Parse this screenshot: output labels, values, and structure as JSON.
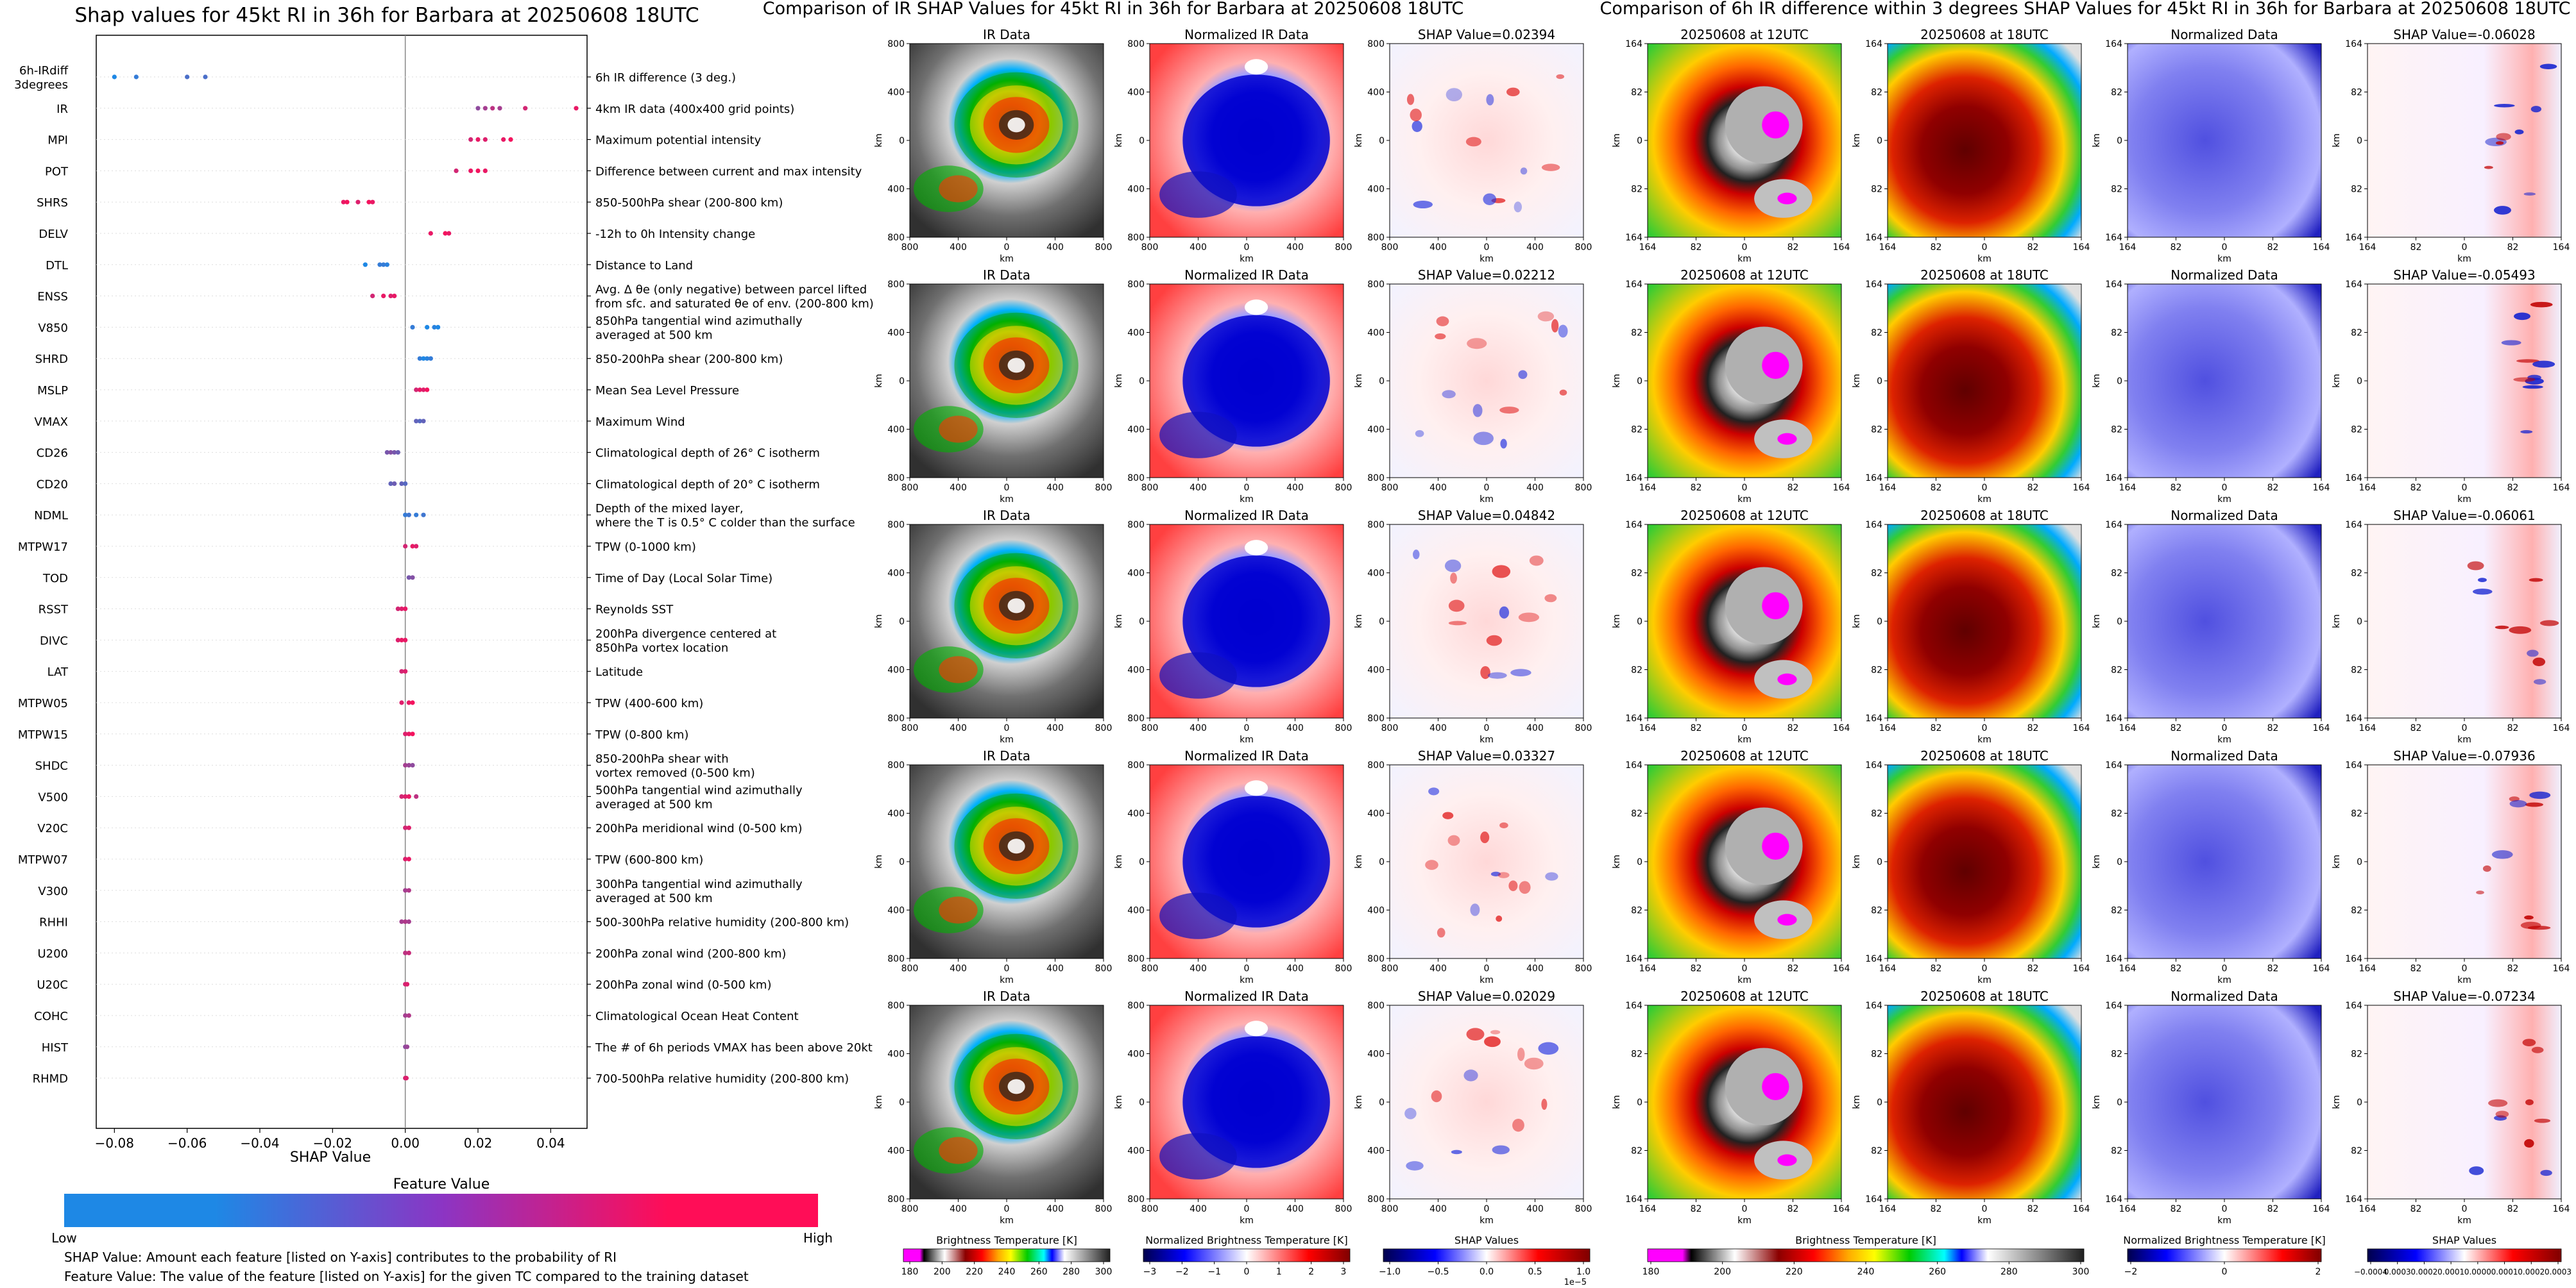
{
  "left_panel": {
    "title": "Shap values for 45kt RI in 36h for Barbara at 20250608 18UTC",
    "xlabel": "SHAP Value",
    "xticks": [
      "−0.08",
      "−0.06",
      "−0.04",
      "−0.02",
      "0.00",
      "0.02",
      "0.04"
    ],
    "colorbar_title": "Feature Value",
    "colorbar_low": "Low",
    "colorbar_high": "High",
    "note1": "SHAP Value: Amount each feature [listed on Y-axis] contributes to the probability of RI",
    "note2": "Feature Value: The value of the feature [listed on Y-axis] for the given TC compared to the training dataset",
    "colors": {
      "low": "#1e88e5",
      "high": "#ff0d57"
    }
  },
  "chart_data": {
    "type": "scatter",
    "title": "Shap values for 45kt RI in 36h for Barbara at 20250608 18UTC",
    "xlabel": "SHAP Value",
    "xlim": [
      -0.085,
      0.05
    ],
    "features": [
      {
        "name": "6h-IRdiff\n3degrees",
        "desc": "6h IR difference (3 deg.)",
        "points": [
          [
            -0.08,
            0
          ],
          [
            -0.074,
            0.1
          ],
          [
            -0.06,
            0.2
          ],
          [
            -0.055,
            0.2
          ]
        ]
      },
      {
        "name": "IR",
        "desc": "4km IR data (400x400 grid points)",
        "points": [
          [
            0.02,
            0.5
          ],
          [
            0.022,
            0.6
          ],
          [
            0.024,
            0.7
          ],
          [
            0.026,
            0.6
          ],
          [
            0.033,
            0.8
          ],
          [
            0.047,
            0.9
          ]
        ]
      },
      {
        "name": "MPI",
        "desc": "Maximum potential intensity",
        "points": [
          [
            0.018,
            0.8
          ],
          [
            0.02,
            0.9
          ],
          [
            0.022,
            0.85
          ],
          [
            0.027,
            0.9
          ],
          [
            0.029,
            0.95
          ]
        ]
      },
      {
        "name": "POT",
        "desc": "Difference between current and max intensity",
        "points": [
          [
            0.014,
            0.8
          ],
          [
            0.018,
            0.9
          ],
          [
            0.02,
            0.95
          ],
          [
            0.022,
            0.9
          ]
        ]
      },
      {
        "name": "SHRS",
        "desc": "850-500hPa shear (200-800 km)",
        "points": [
          [
            -0.017,
            0.9
          ],
          [
            -0.016,
            0.95
          ],
          [
            -0.013,
            0.85
          ],
          [
            -0.009,
            0.9
          ],
          [
            -0.01,
            0.95
          ]
        ]
      },
      {
        "name": "DELV",
        "desc": "-12h to 0h Intensity change",
        "points": [
          [
            0.007,
            0.9
          ],
          [
            0.011,
            0.95
          ],
          [
            0.012,
            0.9
          ]
        ]
      },
      {
        "name": "DTL",
        "desc": "Distance to Land",
        "points": [
          [
            -0.011,
            0.0
          ],
          [
            -0.007,
            0.1
          ],
          [
            -0.005,
            0.05
          ],
          [
            -0.006,
            0.1
          ]
        ]
      },
      {
        "name": "ENSS",
        "desc": "Avg. Δ θe (only negative) between parcel lifted\nfrom sfc. and saturated θe of env. (200-800 km)",
        "points": [
          [
            -0.009,
            0.8
          ],
          [
            -0.006,
            0.9
          ],
          [
            -0.004,
            0.85
          ],
          [
            -0.003,
            0.9
          ]
        ]
      },
      {
        "name": "V850",
        "desc": "850hPa tangential wind azimuthally\naveraged at 500 km",
        "points": [
          [
            0.002,
            0.1
          ],
          [
            0.006,
            0.0
          ],
          [
            0.008,
            0.05
          ],
          [
            0.009,
            0.0
          ]
        ]
      },
      {
        "name": "SHRD",
        "desc": "850-200hPa shear (200-800 km)",
        "points": [
          [
            0.004,
            0.1
          ],
          [
            0.005,
            0.0
          ],
          [
            0.006,
            0.05
          ],
          [
            0.007,
            0.1
          ]
        ]
      },
      {
        "name": "MSLP",
        "desc": "Mean Sea Level Pressure",
        "points": [
          [
            0.003,
            0.8
          ],
          [
            0.004,
            0.9
          ],
          [
            0.005,
            0.85
          ],
          [
            0.006,
            0.95
          ]
        ]
      },
      {
        "name": "VMAX",
        "desc": "Maximum Wind",
        "points": [
          [
            0.003,
            0.3
          ],
          [
            0.004,
            0.25
          ],
          [
            0.005,
            0.3
          ]
        ]
      },
      {
        "name": "CD26",
        "desc": "Climatological depth of 26° C isotherm",
        "points": [
          [
            -0.005,
            0.4
          ],
          [
            -0.004,
            0.45
          ],
          [
            -0.003,
            0.4
          ],
          [
            -0.002,
            0.35
          ]
        ]
      },
      {
        "name": "CD20",
        "desc": "Climatological depth of 20° C isotherm",
        "points": [
          [
            -0.004,
            0.3
          ],
          [
            -0.003,
            0.35
          ],
          [
            -0.001,
            0.3
          ],
          [
            0.0,
            0.25
          ]
        ]
      },
      {
        "name": "NDML",
        "desc": "Depth of the mixed layer,\nwhere the T is 0.5° C colder than the surface",
        "points": [
          [
            0.0,
            0.1
          ],
          [
            0.001,
            0.15
          ],
          [
            0.003,
            0.1
          ],
          [
            0.005,
            0.15
          ]
        ]
      },
      {
        "name": "MTPW17",
        "desc": "TPW (0-1000 km)",
        "points": [
          [
            0.0,
            0.8
          ],
          [
            0.002,
            0.9
          ],
          [
            0.003,
            0.85
          ]
        ]
      },
      {
        "name": "TOD",
        "desc": "Time of Day (Local Solar Time)",
        "points": [
          [
            0.001,
            0.4
          ],
          [
            0.002,
            0.45
          ]
        ]
      },
      {
        "name": "RSST",
        "desc": "Reynolds SST",
        "points": [
          [
            -0.002,
            0.8
          ],
          [
            -0.001,
            0.85
          ],
          [
            0.0,
            0.9
          ]
        ]
      },
      {
        "name": "DIVC",
        "desc": "200hPa divergence centered at\n850hPa vortex location",
        "points": [
          [
            -0.002,
            0.85
          ],
          [
            -0.001,
            0.9
          ],
          [
            0.0,
            0.9
          ]
        ]
      },
      {
        "name": "LAT",
        "desc": "Latitude",
        "points": [
          [
            -0.001,
            0.8
          ],
          [
            0.0,
            0.85
          ]
        ]
      },
      {
        "name": "MTPW05",
        "desc": "TPW (400-600 km)",
        "points": [
          [
            -0.001,
            0.85
          ],
          [
            0.001,
            0.9
          ],
          [
            0.002,
            0.95
          ]
        ]
      },
      {
        "name": "MTPW15",
        "desc": "TPW (0-800 km)",
        "points": [
          [
            0.0,
            0.85
          ],
          [
            0.001,
            0.9
          ],
          [
            0.002,
            0.95
          ]
        ]
      },
      {
        "name": "SHDC",
        "desc": "850-200hPa shear with\nvortex removed (0-500 km)",
        "points": [
          [
            0.0,
            0.6
          ],
          [
            0.001,
            0.55
          ],
          [
            0.002,
            0.5
          ]
        ]
      },
      {
        "name": "V500",
        "desc": "500hPa tangential wind azimuthally\naveraged at 500 km",
        "points": [
          [
            -0.001,
            0.8
          ],
          [
            0.0,
            0.85
          ],
          [
            0.001,
            0.9
          ],
          [
            0.003,
            0.7
          ]
        ]
      },
      {
        "name": "V20C",
        "desc": "200hPa meridional wind (0-500 km)",
        "points": [
          [
            0.0,
            0.8
          ],
          [
            0.001,
            0.85
          ]
        ]
      },
      {
        "name": "MTPW07",
        "desc": "TPW (600-800 km)",
        "points": [
          [
            0.0,
            0.85
          ],
          [
            0.001,
            0.9
          ]
        ]
      },
      {
        "name": "V300",
        "desc": "300hPa tangential wind azimuthally\naveraged at 500 km",
        "points": [
          [
            0.0,
            0.6
          ],
          [
            0.001,
            0.65
          ]
        ]
      },
      {
        "name": "RHHI",
        "desc": "500-300hPa relative humidity (200-800 km)",
        "points": [
          [
            -0.001,
            0.6
          ],
          [
            0.0,
            0.65
          ],
          [
            0.001,
            0.6
          ]
        ]
      },
      {
        "name": "U200",
        "desc": "200hPa zonal wind (200-800 km)",
        "points": [
          [
            0.0,
            0.7
          ],
          [
            0.001,
            0.75
          ]
        ]
      },
      {
        "name": "U20C",
        "desc": "200hPa zonal wind (0-500 km)",
        "points": [
          [
            0.0,
            0.8
          ],
          [
            0.0005,
            0.85
          ]
        ]
      },
      {
        "name": "COHC",
        "desc": "Climatological Ocean Heat Content",
        "points": [
          [
            0.0,
            0.6
          ],
          [
            0.001,
            0.65
          ]
        ]
      },
      {
        "name": "HIST",
        "desc": "The # of 6h periods VMAX has been above 20kt",
        "points": [
          [
            0.0,
            0.5
          ],
          [
            0.0005,
            0.55
          ]
        ]
      },
      {
        "name": "RHMD",
        "desc": "700-500hPa relative humidity (200-800 km)",
        "points": [
          [
            0.0,
            0.8
          ],
          [
            0.0003,
            0.85
          ]
        ]
      }
    ]
  },
  "middle_panel": {
    "title": "Comparison of IR SHAP Values for 45kt RI in 36h for Barbara at 20250608 18UTC",
    "col_titles": [
      "IR Data",
      "Normalized IR Data"
    ],
    "shap_titles": [
      "SHAP Value=0.02394",
      "SHAP Value=0.02212",
      "SHAP Value=0.04842",
      "SHAP Value=0.03327",
      "SHAP Value=0.02029"
    ],
    "ticks": [
      "800",
      "400",
      "0",
      "400",
      "800"
    ],
    "axis_label": "km",
    "colorbars": [
      {
        "label": "Brightness Temperature [K]",
        "ticks": [
          "180",
          "200",
          "220",
          "240",
          "260",
          "280",
          "300"
        ]
      },
      {
        "label": "Normalized Brightness Temperature [K]",
        "ticks": [
          "−3",
          "−2",
          "−1",
          "0",
          "1",
          "2",
          "3"
        ]
      },
      {
        "label": "SHAP Values",
        "ticks": [
          "−1.0",
          "−0.5",
          "0.0",
          "0.5",
          "1.0"
        ],
        "offset": "1e−5"
      }
    ]
  },
  "right_panel": {
    "title": "Comparison of 6h IR difference within 3 degrees SHAP Values for 45kt RI in 36h for Barbara at 20250608 18UTC",
    "col_titles": [
      "20250608 at 12UTC",
      "20250608 at 18UTC",
      "Normalized Data"
    ],
    "shap_titles": [
      "SHAP Value=-0.06028",
      "SHAP Value=-0.05493",
      "SHAP Value=-0.06061",
      "SHAP Value=-0.07936",
      "SHAP Value=-0.07234"
    ],
    "ticks": [
      "164",
      "82",
      "0",
      "82",
      "164"
    ],
    "axis_label": "km",
    "colorbars": [
      {
        "label": "Brightness Temperature [K]",
        "ticks": [
          "180",
          "200",
          "220",
          "240",
          "260",
          "280",
          "300"
        ]
      },
      {
        "label": "Normalized Brightness Temperature [K]",
        "ticks": [
          "−2",
          "0",
          "2"
        ]
      },
      {
        "label": "SHAP Values",
        "ticks": [
          "−0.0004",
          "0.0003",
          "0.0002",
          "0.0001",
          "0.0000",
          "0.0001",
          "0.0002",
          "0.0003"
        ]
      }
    ]
  }
}
